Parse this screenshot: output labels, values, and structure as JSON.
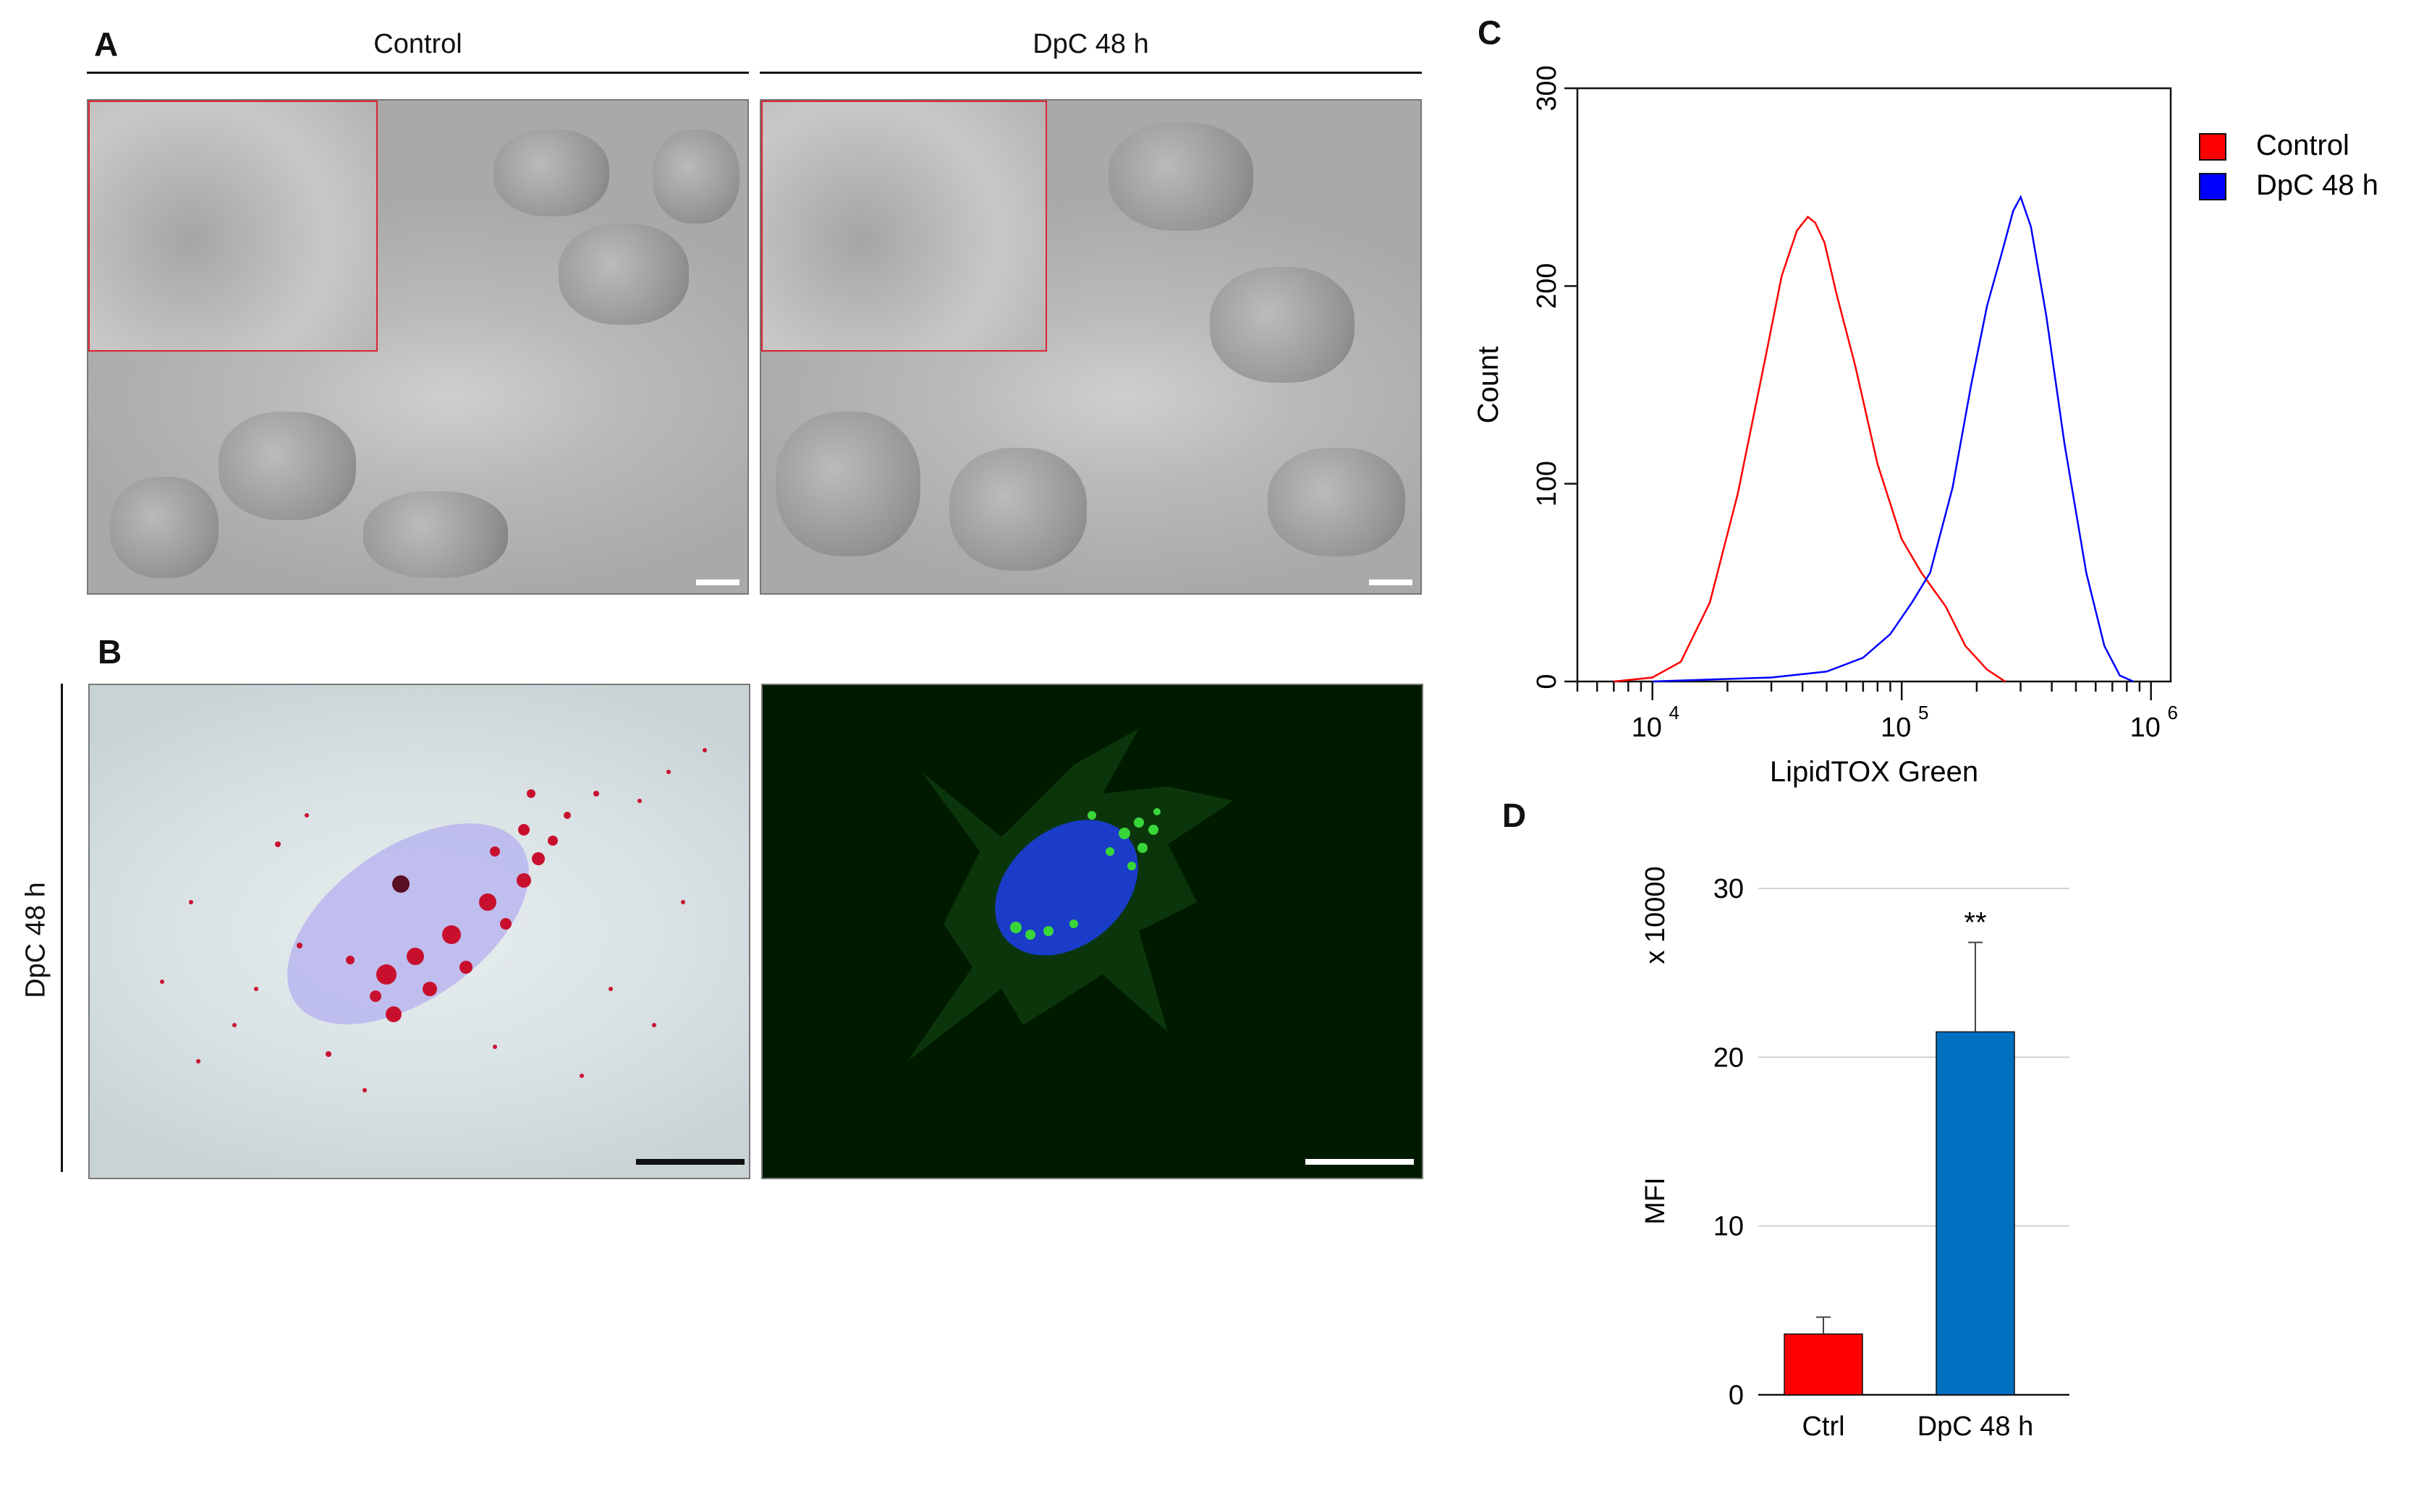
{
  "panels": {
    "A": {
      "label": "A",
      "col1": "Control",
      "col2": "DpC 48 h"
    },
    "B": {
      "label": "B",
      "row_label": "DpC 48 h"
    },
    "C": {
      "label": "C"
    },
    "D": {
      "label": "D"
    }
  },
  "chart_data": [
    {
      "panel": "C",
      "type": "line",
      "xlabel": "LipidTOX Green",
      "ylabel": "Count",
      "x_scale": "log",
      "xlim": [
        5000,
        1200000
      ],
      "ylim": [
        0,
        300
      ],
      "y_ticks": [
        "0",
        "100",
        "200",
        "300"
      ],
      "x_tick_labels": [
        {
          "base": "10",
          "exp": "4"
        },
        {
          "base": "10",
          "exp": "5"
        },
        {
          "base": "10",
          "exp": "6"
        }
      ],
      "legend_position": "right",
      "series": [
        {
          "name": "Control",
          "color": "#ff0000",
          "x": [
            7000,
            10000,
            13000,
            17000,
            22000,
            28000,
            33000,
            38000,
            42000,
            45000,
            49000,
            55000,
            65000,
            80000,
            100000,
            120000,
            150000,
            180000,
            220000,
            260000
          ],
          "y": [
            0,
            2,
            10,
            40,
            95,
            160,
            205,
            228,
            235,
            232,
            222,
            195,
            160,
            110,
            72,
            55,
            38,
            18,
            6,
            0
          ]
        },
        {
          "name": "DpC 48 h",
          "color": "#0000ff",
          "x": [
            10000,
            30000,
            50000,
            70000,
            90000,
            110000,
            130000,
            160000,
            190000,
            220000,
            250000,
            280000,
            300000,
            330000,
            380000,
            450000,
            550000,
            650000,
            750000,
            850000
          ],
          "y": [
            0,
            2,
            5,
            12,
            24,
            40,
            55,
            98,
            150,
            190,
            215,
            238,
            245,
            230,
            185,
            120,
            55,
            18,
            3,
            0
          ]
        }
      ]
    },
    {
      "panel": "D",
      "type": "bar",
      "categories": [
        "Ctrl",
        "DpC 48 h"
      ],
      "values": [
        3.6,
        21.5
      ],
      "errors": [
        1.0,
        5.3
      ],
      "colors": [
        "#ff0000",
        "#0070c0"
      ],
      "ylabel": "MFI",
      "multiplier_label": "x 10000",
      "ylim": [
        0,
        30
      ],
      "y_ticks": [
        "0",
        "10",
        "20",
        "30"
      ],
      "gridlines": true,
      "annotation": "**"
    }
  ]
}
